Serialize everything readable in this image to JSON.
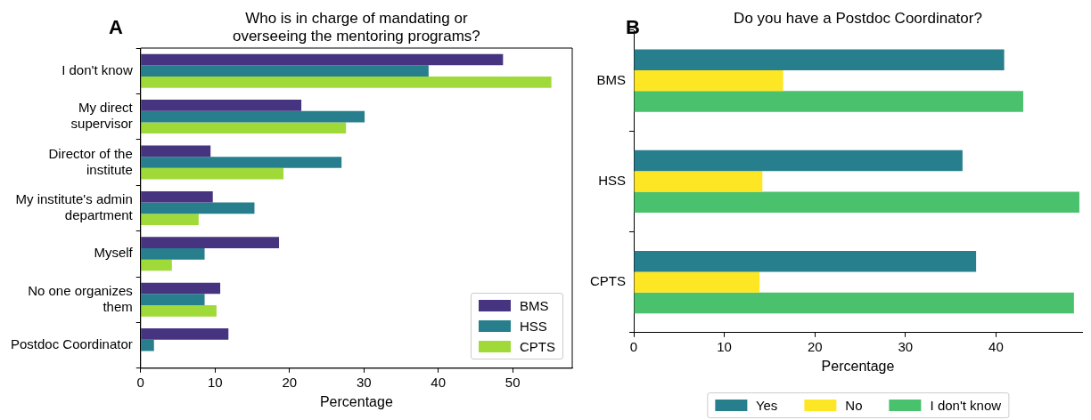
{
  "chart_data": [
    {
      "type": "bar",
      "orientation": "horizontal",
      "title": "Who is in charge of mandating or\noverseeing the mentoring programs?",
      "xlabel": "Percentage",
      "annotations": [
        "A"
      ],
      "categories": [
        "I don't know",
        "My direct\nsupervisor",
        "Director of the\ninstitute",
        "My institute's admin\ndepartment",
        "Myself",
        "No one organizes\nthem",
        "Postdoc Coordinator"
      ],
      "series": [
        {
          "name": "BMS",
          "color": "#463480",
          "values": [
            48.7,
            21.6,
            9.4,
            9.7,
            18.6,
            10.7,
            11.8
          ]
        },
        {
          "name": "HSS",
          "color": "#277f8e",
          "values": [
            38.7,
            30.1,
            27.0,
            15.3,
            8.6,
            8.6,
            1.8
          ]
        },
        {
          "name": "CPTS",
          "color": "#a0da39",
          "values": [
            55.2,
            27.6,
            19.2,
            7.8,
            4.2,
            10.2,
            0
          ]
        }
      ],
      "xlim": [
        0,
        58
      ],
      "xticks": [
        0,
        10,
        20,
        30,
        40,
        50
      ],
      "grid": false,
      "legend": "bottom right"
    },
    {
      "type": "bar",
      "orientation": "horizontal",
      "title": "Do you have a Postdoc Coordinator?",
      "xlabel": "Percentage",
      "annotations": [
        "B"
      ],
      "categories": [
        "BMS",
        "HSS",
        "CPTS"
      ],
      "series": [
        {
          "name": "Yes",
          "color": "#277f8e",
          "values": [
            40.9,
            36.3,
            37.8
          ]
        },
        {
          "name": "No",
          "color": "#fde725",
          "values": [
            16.5,
            14.2,
            13.9
          ]
        },
        {
          "name": "I don't know",
          "color": "#4ac16d",
          "values": [
            43.0,
            49.2,
            48.6
          ]
        }
      ],
      "xlim": [
        0,
        49.5
      ],
      "xticks": [
        0,
        10,
        20,
        30,
        40
      ],
      "grid": false,
      "legend": "bottom"
    }
  ]
}
